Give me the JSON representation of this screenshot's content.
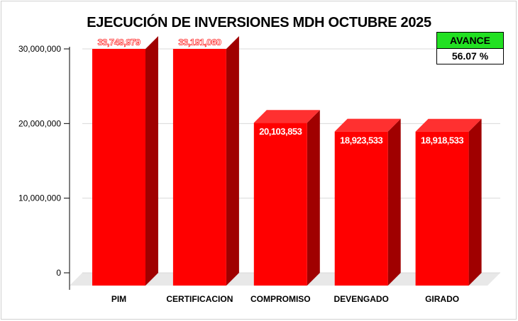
{
  "chart_data": {
    "type": "bar",
    "title": "EJECUCIÓN DE INVERSIONES MDH OCTUBRE 2025",
    "categories": [
      "PIM",
      "CERTIFICACION",
      "COMPROMISO",
      "DEVENGADO",
      "GIRADO"
    ],
    "values": [
      33749979,
      33191060,
      20103853,
      18923533,
      18918533
    ],
    "data_labels": [
      "33,749,979",
      "33,191,060",
      "20,103,853",
      "18,923,533",
      "18,918,533"
    ],
    "ylim": [
      0,
      30000000
    ],
    "yticks": [
      0,
      10000000,
      20000000,
      30000000
    ],
    "ytick_labels": [
      "0",
      "10,000,000",
      "20,000,000",
      "30,000,000"
    ],
    "grid": true,
    "colors": {
      "bar_front": "#ff0000",
      "bar_side": "#a00000",
      "bar_top": "#ff3030",
      "floor": "#e8e8e8"
    }
  },
  "avance": {
    "label": "AVANCE",
    "value": "56.07 %"
  }
}
